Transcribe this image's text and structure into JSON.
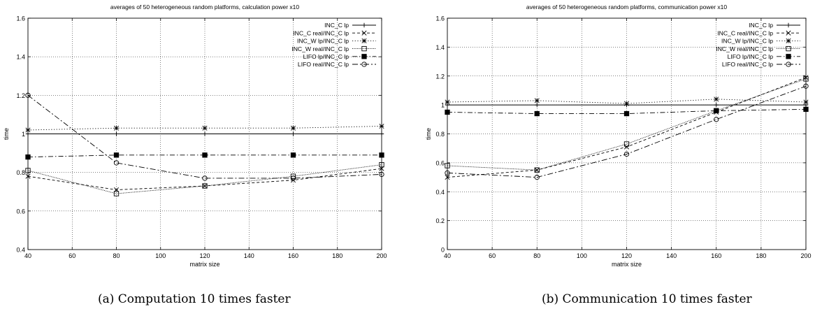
{
  "figures": [
    {
      "caption": "(a) Computation 10 times faster"
    },
    {
      "caption": "(b) Communication 10 times faster"
    }
  ],
  "chart_data": [
    {
      "type": "line",
      "title": "averages of 50 heterogeneous random platforms, calculation power x10",
      "xlabel": "matrix size",
      "ylabel": "time",
      "xlim": [
        40,
        200
      ],
      "ylim": [
        0.4,
        1.6
      ],
      "xticks": [
        40,
        60,
        80,
        100,
        120,
        140,
        160,
        180,
        200
      ],
      "xtick_labels": [
        "40",
        "60",
        "80",
        "100",
        "120",
        "140",
        "160",
        "180",
        "200"
      ],
      "yticks": [
        0.4,
        0.6,
        0.8,
        1.0,
        1.2,
        1.4,
        1.6
      ],
      "ytick_labels": [
        "0.4",
        "0.6",
        "0.8",
        "1",
        "1.2",
        "1.4",
        "1.6"
      ],
      "grid": true,
      "legend_position": "top-right",
      "x": [
        40,
        80,
        120,
        160,
        200
      ],
      "series": [
        {
          "name": "INC_C lp",
          "marker": "plus",
          "dash": "solid",
          "values": [
            1.0,
            1.0,
            1.0,
            1.0,
            1.0
          ]
        },
        {
          "name": "INC_C real/INC_C lp",
          "marker": "cross",
          "dash": "dashed",
          "values": [
            0.78,
            0.71,
            0.73,
            0.76,
            0.82
          ]
        },
        {
          "name": "INC_W lp/INC_C lp",
          "marker": "star",
          "dash": "dotted",
          "values": [
            1.02,
            1.03,
            1.03,
            1.03,
            1.04
          ]
        },
        {
          "name": "INC_W real/INC_C lp",
          "marker": "square",
          "dash": "fine-dotted",
          "values": [
            0.81,
            0.69,
            0.73,
            0.78,
            0.84
          ]
        },
        {
          "name": "LIFO lp/INC_C lp",
          "marker": "filled-square",
          "dash": "dashdot",
          "values": [
            0.88,
            0.89,
            0.89,
            0.89,
            0.89
          ]
        },
        {
          "name": "LIFO real/INC_C lp",
          "marker": "circle",
          "dash": "longdash",
          "values": [
            1.2,
            0.85,
            0.77,
            0.77,
            0.79
          ]
        }
      ]
    },
    {
      "type": "line",
      "title": "averages of 50 heterogeneous random platforms, communication power x10",
      "xlabel": "matrix size",
      "ylabel": "time",
      "xlim": [
        40,
        200
      ],
      "ylim": [
        0,
        1.6
      ],
      "xticks": [
        40,
        60,
        80,
        100,
        120,
        140,
        160,
        180,
        200
      ],
      "xtick_labels": [
        "40",
        "60",
        "80",
        "100",
        "120",
        "140",
        "160",
        "180",
        "200"
      ],
      "yticks": [
        0,
        0.2,
        0.4,
        0.6,
        0.8,
        1.0,
        1.2,
        1.4,
        1.6
      ],
      "ytick_labels": [
        "0",
        "0.2",
        "0.4",
        "0.6",
        "0.8",
        "1",
        "1.2",
        "1.4",
        "1.6"
      ],
      "grid": true,
      "legend_position": "top-right",
      "x": [
        40,
        80,
        120,
        160,
        200
      ],
      "series": [
        {
          "name": "INC_C lp",
          "marker": "plus",
          "dash": "solid",
          "values": [
            1.0,
            1.0,
            1.0,
            1.0,
            1.0
          ]
        },
        {
          "name": "INC_C real/INC_C lp",
          "marker": "cross",
          "dash": "dashed",
          "values": [
            0.5,
            0.55,
            0.71,
            0.95,
            1.19
          ]
        },
        {
          "name": "INC_W lp/INC_C lp",
          "marker": "star",
          "dash": "dotted",
          "values": [
            1.02,
            1.03,
            1.01,
            1.04,
            1.02
          ]
        },
        {
          "name": "INC_W real/INC_C lp",
          "marker": "square",
          "dash": "fine-dotted",
          "values": [
            0.58,
            0.55,
            0.73,
            0.96,
            1.18
          ]
        },
        {
          "name": "LIFO lp/INC_C lp",
          "marker": "filled-square",
          "dash": "dashdot",
          "values": [
            0.95,
            0.94,
            0.94,
            0.96,
            0.97
          ]
        },
        {
          "name": "LIFO real/INC_C lp",
          "marker": "circle",
          "dash": "longdash",
          "values": [
            0.53,
            0.5,
            0.66,
            0.9,
            1.13
          ]
        }
      ]
    }
  ]
}
